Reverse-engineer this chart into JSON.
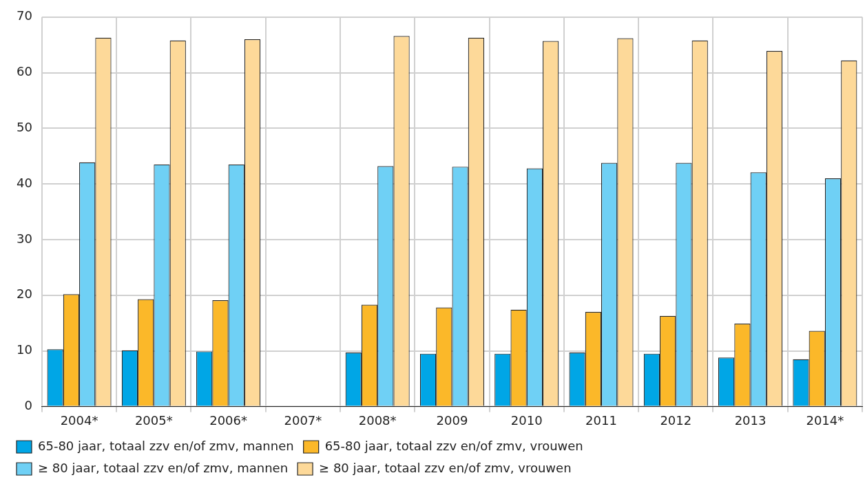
{
  "chart_data": {
    "type": "bar",
    "categories": [
      "2004*",
      "2005*",
      "2006*",
      "2007*",
      "2008*",
      "2009",
      "2010",
      "2011",
      "2012",
      "2013",
      "2014*"
    ],
    "series": [
      {
        "name": "65-80 jaar, totaal zzv en/of zmv, mannen",
        "color": "#00a6e6",
        "values": [
          10.3,
          10.1,
          9.9,
          null,
          9.7,
          9.5,
          9.5,
          9.7,
          9.5,
          8.8,
          8.5
        ]
      },
      {
        "name": "65-80 jaar, totaal zzv en/of zmv, vrouwen",
        "color": "#fbb829",
        "values": [
          20.2,
          19.3,
          19.1,
          null,
          18.3,
          17.8,
          17.4,
          17.0,
          16.3,
          14.9,
          13.6
        ]
      },
      {
        "name": "≥ 80 jaar, totaal zzv en/of zmv, mannen",
        "color": "#6fd0f5",
        "values": [
          43.9,
          43.5,
          43.5,
          null,
          43.2,
          43.1,
          42.8,
          43.8,
          43.8,
          42.1,
          41.0
        ]
      },
      {
        "name": "≥ 80 jaar, totaal zzv en/of zmv, vrouwen",
        "color": "#fdd999",
        "values": [
          66.3,
          65.8,
          66.0,
          null,
          66.6,
          66.3,
          65.7,
          66.2,
          65.8,
          63.9,
          62.2
        ]
      }
    ],
    "ylim": [
      0,
      70
    ],
    "yticks": [
      0,
      10,
      20,
      30,
      40,
      50,
      60,
      70
    ],
    "grid": true,
    "legend": "bottom"
  }
}
